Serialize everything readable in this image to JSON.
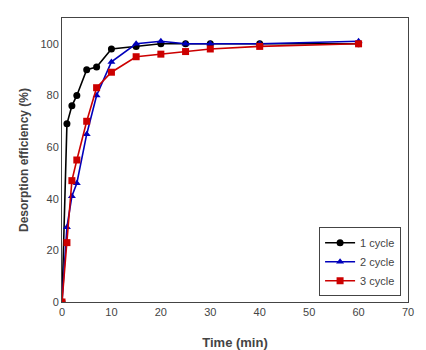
{
  "chart_data": {
    "type": "line",
    "xlabel": "Time (min)",
    "ylabel": "Desorption efficiency (%)",
    "x": [
      0,
      1,
      2,
      3,
      5,
      7,
      10,
      15,
      20,
      25,
      30,
      40,
      60
    ],
    "series": [
      {
        "name": "1 cycle",
        "color": "#000000",
        "marker": "circle",
        "values": [
          0,
          69,
          76,
          80,
          90,
          91,
          98,
          99,
          100,
          100,
          100,
          100,
          100
        ]
      },
      {
        "name": "2 cycle",
        "color": "#0000bb",
        "marker": "triangle",
        "values": [
          0,
          29,
          41,
          46,
          65,
          80,
          93,
          100,
          101,
          100,
          100,
          100,
          101
        ]
      },
      {
        "name": "3 cycle",
        "color": "#cc0000",
        "marker": "square",
        "values": [
          0,
          23,
          47,
          55,
          70,
          83,
          89,
          95,
          96,
          97,
          98,
          99,
          100
        ]
      }
    ],
    "xlim": [
      0,
      70
    ],
    "ylim": [
      0,
      110
    ],
    "xticks": [
      0,
      10,
      20,
      30,
      40,
      50,
      60,
      70
    ],
    "yticks": [
      0,
      20,
      40,
      60,
      80,
      100
    ],
    "legend": "lower right",
    "grid": false
  }
}
